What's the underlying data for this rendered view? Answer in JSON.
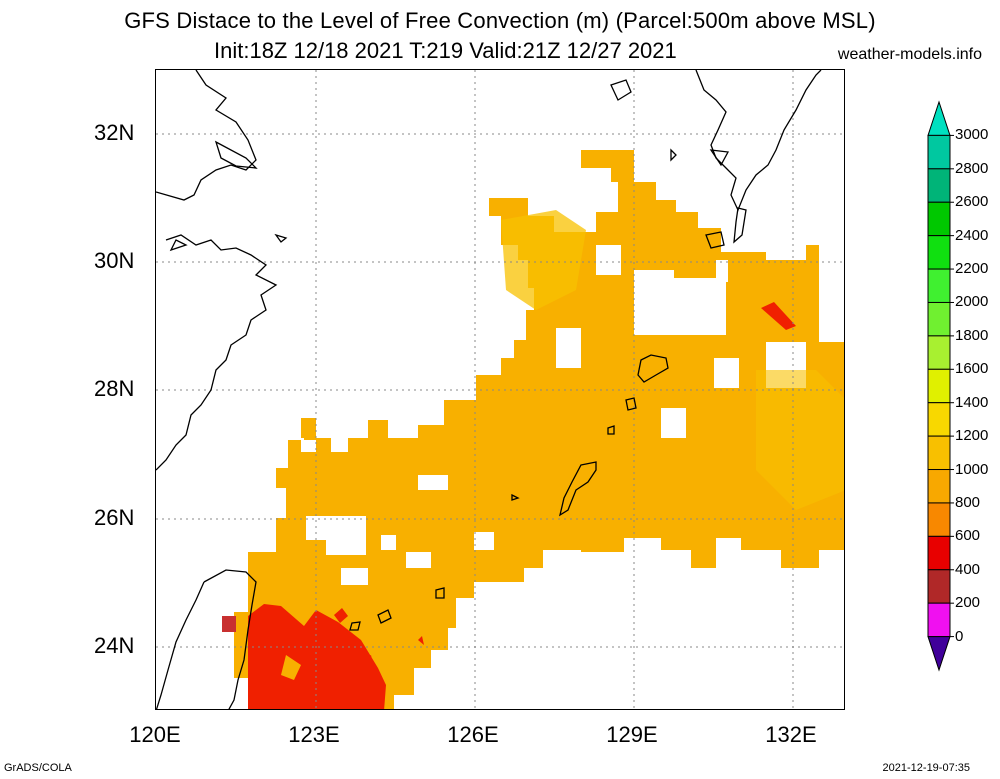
{
  "title": {
    "line1": "GFS Distace to the Level of Free Convection (m) (Parcel:500m above MSL)",
    "line2": "Init:18Z 12/18 2021 T:219 Valid:21Z 12/27 2021",
    "site": "weather-models.info"
  },
  "axes": {
    "lat_labels": [
      "32N",
      "30N",
      "28N",
      "26N",
      "24N"
    ],
    "lon_labels": [
      "120E",
      "123E",
      "126E",
      "129E",
      "132E"
    ],
    "lat_range": [
      23,
      33
    ],
    "lon_range": [
      120,
      133
    ]
  },
  "colorbar": {
    "labels": [
      "3000",
      "2800",
      "2600",
      "2400",
      "2200",
      "2000",
      "1800",
      "1600",
      "1400",
      "1200",
      "1000",
      "800",
      "600",
      "400",
      "200",
      "0"
    ],
    "colors": [
      "#00e0c0",
      "#00c8a0",
      "#00b478",
      "#00c800",
      "#10e010",
      "#40f030",
      "#70f030",
      "#a8f030",
      "#e0f000",
      "#f8d800",
      "#f8c000",
      "#f8a800",
      "#f88800",
      "#e80000",
      "#b02828",
      "#f010f0",
      "#40009a"
    ]
  },
  "footer": {
    "left": "GrADS/COLA",
    "right": "2021-12-19-07:35"
  }
}
